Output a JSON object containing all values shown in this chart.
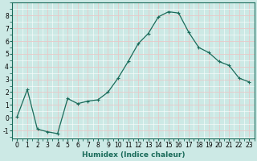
{
  "x": [
    0,
    1,
    2,
    3,
    4,
    5,
    6,
    7,
    8,
    9,
    10,
    11,
    12,
    13,
    14,
    15,
    16,
    17,
    18,
    19,
    20,
    21,
    22,
    23
  ],
  "y": [
    0.1,
    2.2,
    -0.9,
    -1.1,
    -1.25,
    1.5,
    1.1,
    1.3,
    1.4,
    2.0,
    3.1,
    4.4,
    5.8,
    6.6,
    7.9,
    8.3,
    8.2,
    6.7,
    5.5,
    5.1,
    4.4,
    4.1,
    3.1,
    2.8
  ],
  "line_color": "#1a6b5a",
  "marker": "+",
  "marker_size": 3,
  "marker_lw": 0.8,
  "bg_color": "#cce9e5",
  "grid_major_color": "#e8c8c8",
  "grid_minor_color": "#ffffff",
  "xlabel": "Humidex (Indice chaleur)",
  "xlim": [
    -0.5,
    23.5
  ],
  "ylim": [
    -1.6,
    9.0
  ],
  "yticks": [
    -1,
    0,
    1,
    2,
    3,
    4,
    5,
    6,
    7,
    8
  ],
  "xticks": [
    0,
    1,
    2,
    3,
    4,
    5,
    6,
    7,
    8,
    9,
    10,
    11,
    12,
    13,
    14,
    15,
    16,
    17,
    18,
    19,
    20,
    21,
    22,
    23
  ],
  "tick_fontsize": 5.5,
  "label_fontsize": 6.5,
  "linewidth": 0.9
}
